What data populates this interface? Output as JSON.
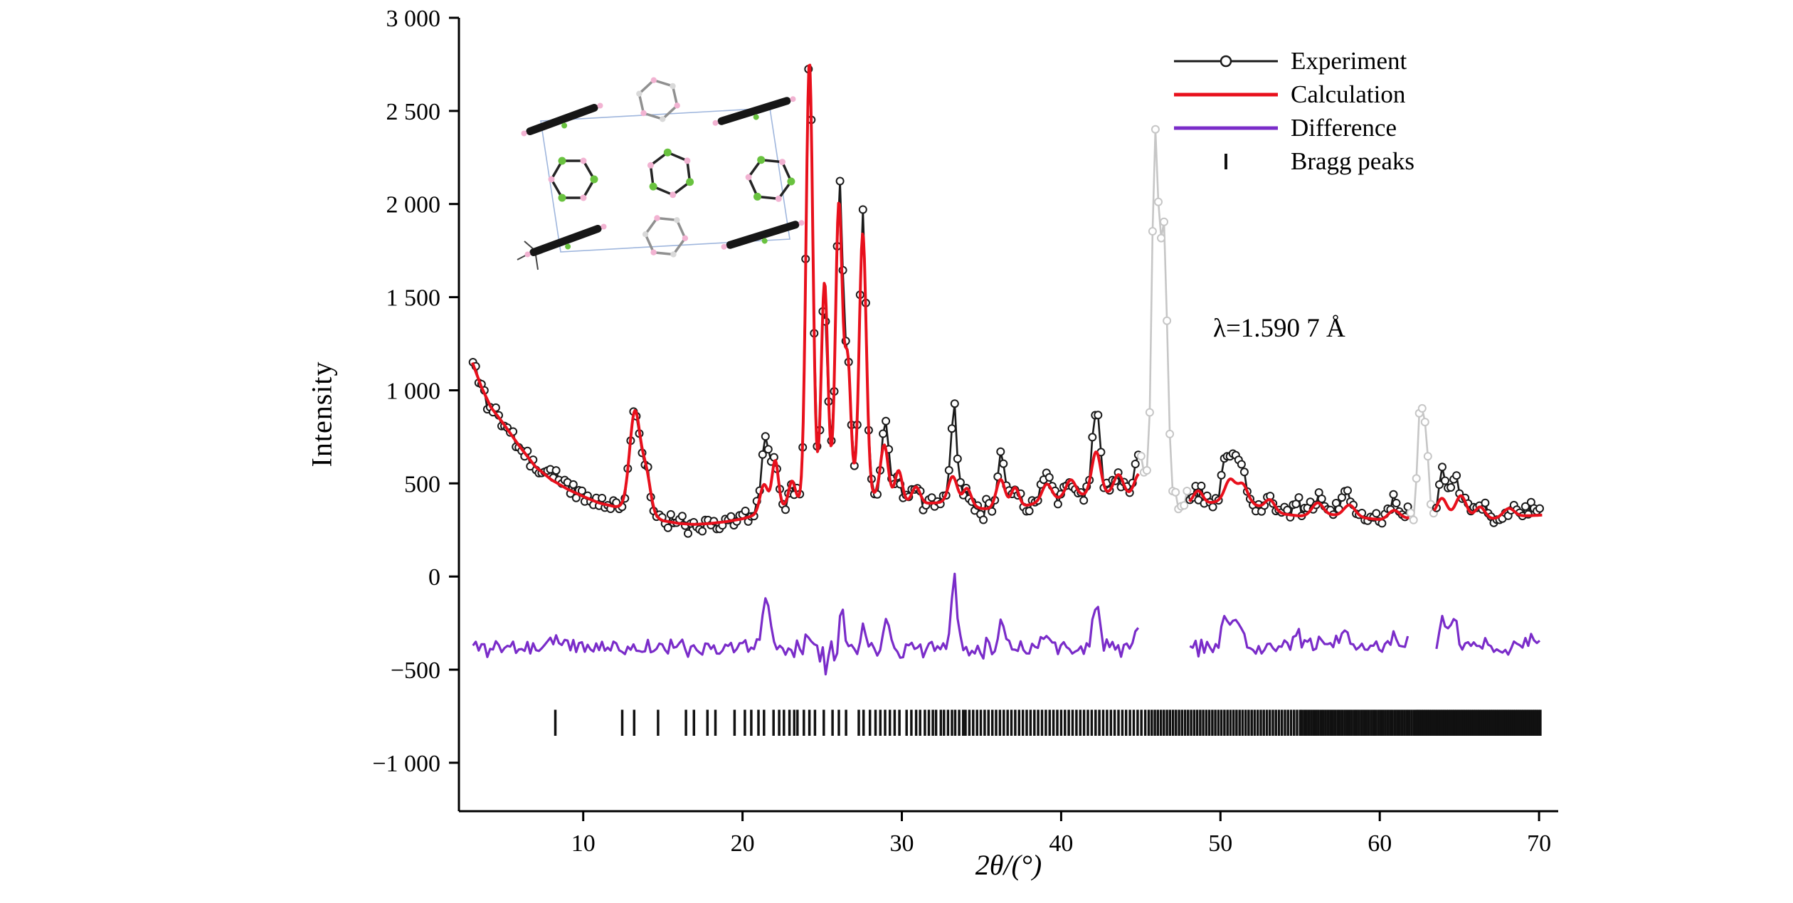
{
  "chart_data": {
    "type": "line",
    "title": "",
    "xlabel": "2θ/(°)",
    "ylabel": "Intensity",
    "annotation": "λ=1.590 7 Å",
    "x_range": [
      2.2,
      71.2
    ],
    "y_range": [
      -1260,
      3000
    ],
    "x_ticks": [
      10,
      20,
      30,
      40,
      50,
      60,
      70
    ],
    "y_ticks": [
      {
        "value": 3000,
        "label": "3 000"
      },
      {
        "value": 2500,
        "label": "2 500"
      },
      {
        "value": 2000,
        "label": "2 000"
      },
      {
        "value": 1500,
        "label": "1 500"
      },
      {
        "value": 1000,
        "label": "1 000"
      },
      {
        "value": 500,
        "label": "500"
      },
      {
        "value": 0,
        "label": "0"
      },
      {
        "value": -500,
        "label": "−500"
      },
      {
        "value": -1000,
        "label": "−1 000"
      }
    ],
    "legend": [
      {
        "label": "Experiment",
        "color": "#1a1a1a",
        "marker": "line-circle"
      },
      {
        "label": "Calculation",
        "color": "#e8101c",
        "marker": "line"
      },
      {
        "label": "Difference",
        "color": "#7a2cc9",
        "marker": "line"
      },
      {
        "label": "Bragg peaks",
        "color": "#111111",
        "marker": "tick"
      }
    ],
    "series": {
      "sampling": {
        "x_start": 3.08,
        "x_end": 70.2,
        "step": 0.18,
        "noise_seed": 11,
        "noise_amp": 40
      },
      "excluded_color": "#c6c6c6",
      "difference_offset": -380,
      "baseline": [
        [
          3,
          1160
        ],
        [
          3.6,
          1020
        ],
        [
          4.2,
          910
        ],
        [
          5,
          820
        ],
        [
          6,
          700
        ],
        [
          7,
          590
        ],
        [
          8,
          520
        ],
        [
          9,
          470
        ],
        [
          10,
          430
        ],
        [
          11,
          395
        ],
        [
          12,
          375
        ],
        [
          13,
          370
        ],
        [
          14,
          340
        ],
        [
          15,
          300
        ],
        [
          16,
          285
        ],
        [
          17,
          280
        ],
        [
          18,
          285
        ],
        [
          19,
          295
        ],
        [
          20,
          310
        ],
        [
          21,
          335
        ],
        [
          22,
          360
        ],
        [
          23,
          390
        ],
        [
          24,
          420
        ],
        [
          25,
          460
        ],
        [
          26,
          460
        ],
        [
          27,
          450
        ],
        [
          28,
          440
        ],
        [
          29,
          425
        ],
        [
          30,
          405
        ],
        [
          31,
          390
        ],
        [
          32,
          395
        ],
        [
          33,
          400
        ],
        [
          34,
          385
        ],
        [
          35,
          365
        ],
        [
          36,
          360
        ],
        [
          37,
          365
        ],
        [
          38,
          385
        ],
        [
          39,
          405
        ],
        [
          40,
          420
        ],
        [
          41,
          435
        ],
        [
          42,
          440
        ],
        [
          43,
          440
        ],
        [
          44,
          435
        ],
        [
          45,
          430
        ],
        [
          46,
          420
        ],
        [
          47,
          405
        ],
        [
          48,
          390
        ],
        [
          49,
          390
        ],
        [
          50,
          405
        ],
        [
          51,
          415
        ],
        [
          52,
          390
        ],
        [
          53,
          355
        ],
        [
          54,
          335
        ],
        [
          55,
          325
        ],
        [
          56,
          325
        ],
        [
          57,
          330
        ],
        [
          58,
          325
        ],
        [
          59,
          315
        ],
        [
          60,
          305
        ],
        [
          61,
          305
        ],
        [
          62,
          315
        ],
        [
          63,
          330
        ],
        [
          64,
          330
        ],
        [
          65,
          325
        ],
        [
          66,
          315
        ],
        [
          67,
          310
        ],
        [
          68,
          315
        ],
        [
          69,
          325
        ],
        [
          70.2,
          330
        ]
      ],
      "calc_peaks": [
        [
          13.25,
          520,
          0.33
        ],
        [
          13.95,
          200,
          0.28
        ],
        [
          21.35,
          150,
          0.25
        ],
        [
          22.05,
          260,
          0.2
        ],
        [
          23.1,
          120,
          0.2
        ],
        [
          24.2,
          2340,
          0.21
        ],
        [
          25.15,
          1120,
          0.2
        ],
        [
          26.05,
          1540,
          0.21
        ],
        [
          26.6,
          700,
          0.2
        ],
        [
          27.55,
          1400,
          0.22
        ],
        [
          28.9,
          280,
          0.24
        ],
        [
          29.8,
          160,
          0.22
        ],
        [
          30.9,
          90,
          0.25
        ],
        [
          33.2,
          140,
          0.28
        ],
        [
          34.1,
          90,
          0.25
        ],
        [
          36.2,
          160,
          0.28
        ],
        [
          37.1,
          110,
          0.25
        ],
        [
          39.1,
          90,
          0.3
        ],
        [
          40.6,
          90,
          0.3
        ],
        [
          42.2,
          230,
          0.28
        ],
        [
          43.6,
          110,
          0.3
        ],
        [
          44.9,
          120,
          0.3
        ],
        [
          48.6,
          70,
          0.3
        ],
        [
          50.6,
          110,
          0.32
        ],
        [
          51.4,
          90,
          0.3
        ],
        [
          53.1,
          60,
          0.3
        ],
        [
          56.1,
          70,
          0.35
        ],
        [
          58.1,
          60,
          0.35
        ],
        [
          60.9,
          50,
          0.35
        ],
        [
          63.9,
          90,
          0.3
        ],
        [
          65.1,
          110,
          0.32
        ],
        [
          66.3,
          60,
          0.3
        ],
        [
          68.1,
          50,
          0.35
        ]
      ],
      "exp_extra_peaks": [
        [
          8.3,
          60,
          0.3
        ],
        [
          21.45,
          280,
          0.22
        ],
        [
          24.35,
          200,
          0.09
        ],
        [
          26.25,
          240,
          0.1
        ],
        [
          27.65,
          150,
          0.1
        ],
        [
          29.05,
          130,
          0.25
        ],
        [
          33.3,
          400,
          0.17
        ],
        [
          36.3,
          130,
          0.22
        ],
        [
          38.9,
          60,
          0.3
        ],
        [
          42.2,
          230,
          0.22
        ],
        [
          45.0,
          90,
          0.28
        ],
        [
          50.35,
          190,
          0.28
        ],
        [
          51.0,
          150,
          0.24
        ],
        [
          55.0,
          60,
          0.35
        ],
        [
          57.6,
          70,
          0.3
        ],
        [
          61.0,
          60,
          0.3
        ],
        [
          63.9,
          180,
          0.2
        ],
        [
          64.6,
          140,
          0.25
        ],
        [
          69.6,
          70,
          0.3
        ]
      ],
      "excluded_regions": [
        [
          44.9,
          48.0
        ],
        [
          61.9,
          63.4
        ]
      ],
      "excluded_peaks": [
        [
          45.9,
          1920,
          0.2
        ],
        [
          46.45,
          1450,
          0.22
        ],
        [
          62.55,
          620,
          0.16
        ],
        [
          62.9,
          430,
          0.14
        ]
      ]
    },
    "bragg_ticks": {
      "explicit": [
        8.25,
        12.45,
        13.2,
        14.7,
        16.45,
        16.95,
        17.8,
        18.3,
        19.5,
        20.15,
        20.55,
        21.0,
        21.35,
        21.95,
        22.3,
        22.6,
        22.95,
        23.25,
        23.45,
        23.85,
        24.2,
        24.55,
        25.1,
        25.65,
        26.05,
        26.5,
        27.3,
        27.6,
        28.0,
        28.35,
        28.65,
        28.95,
        29.25,
        29.55,
        29.85,
        30.3,
        30.6,
        30.9,
        31.15,
        31.45,
        31.7,
        31.95,
        32.15,
        32.45,
        32.65,
        32.9,
        33.15,
        33.35,
        33.6,
        33.85
      ],
      "dense_segments": [
        {
          "from": 34.0,
          "to": 45.4,
          "step": 0.24
        },
        {
          "from": 45.5,
          "to": 55.0,
          "step": 0.19
        },
        {
          "from": 55.1,
          "to": 62.3,
          "step": 0.15
        },
        {
          "from": 62.4,
          "to": 70.1,
          "step": 0.12
        }
      ],
      "y_level": -785,
      "half_height": 70
    }
  }
}
